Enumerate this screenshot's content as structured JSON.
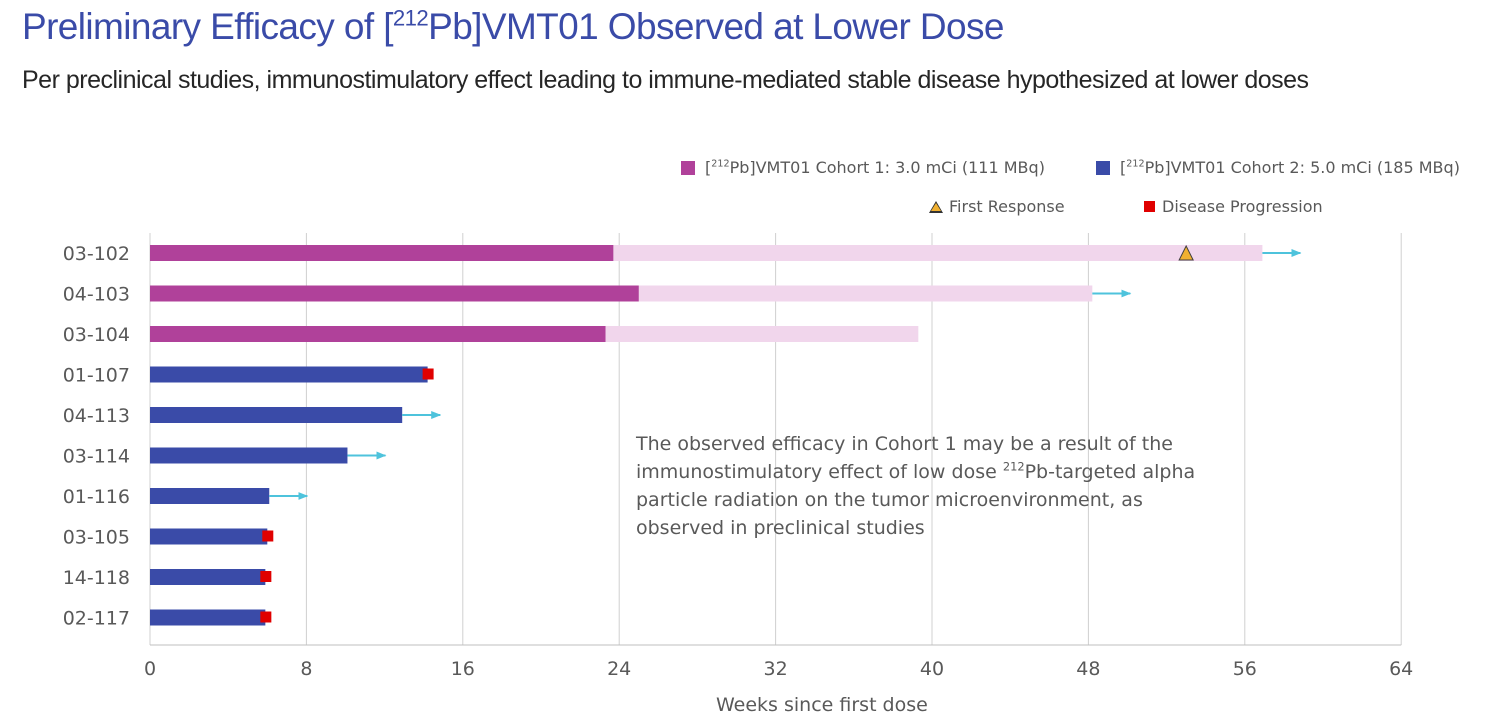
{
  "header": {
    "title_prefix": "Preliminary Efficacy of [",
    "title_sup": "212",
    "title_suffix": "Pb]VMT01 Observed at Lower Dose",
    "subtitle": "Per preclinical studies, immunostimulatory effect leading to immune-mediated stable disease hypothesized at lower doses"
  },
  "legend": {
    "cohort1": {
      "prefix": "[",
      "sup": "212",
      "suffix": "Pb]VMT01 Cohort 1: 3.0 mCi (111 MBq)"
    },
    "cohort2": {
      "prefix": "[",
      "sup": "212",
      "suffix": "Pb]VMT01 Cohort 2: 5.0 mCi (185 MBq)"
    },
    "first_response": "First Response",
    "disease_progression": "Disease Progression"
  },
  "note": {
    "text_before": "The observed efficacy in Cohort 1 may be a result of the immunostimulatory effect of low dose ",
    "sup": "212",
    "text_after": "Pb-targeted alpha particle radiation on the tumor microenvironment, as observed in preclinical studies"
  },
  "colors": {
    "cohort1": "#b0419a",
    "cohort1_light": "#f1d6ec",
    "cohort2": "#3a4ba8",
    "arrow": "#4ec3dc",
    "progression": "#e00000",
    "response": "#f0b030",
    "grid": "#d0d0d0"
  },
  "chart_data": {
    "type": "bar",
    "orientation": "horizontal",
    "xlabel": "Weeks since first dose",
    "xlim": [
      0,
      64
    ],
    "xticks": [
      0,
      8,
      16,
      24,
      32,
      40,
      48,
      56,
      64
    ],
    "grid": true,
    "categories": [
      "03-102",
      "04-103",
      "03-104",
      "01-107",
      "04-113",
      "03-114",
      "01-116",
      "03-105",
      "14-118",
      "02-117"
    ],
    "series": [
      {
        "name": "[212Pb]VMT01 Cohort 1: 3.0 mCi (111 MBq)",
        "patients": [
          {
            "id": "03-102",
            "dark": 23.7,
            "total": 56.9,
            "ongoing": true,
            "first_response": 53.0,
            "progression": null
          },
          {
            "id": "04-103",
            "dark": 25.0,
            "total": 48.2,
            "ongoing": true,
            "first_response": null,
            "progression": null
          },
          {
            "id": "03-104",
            "dark": 23.3,
            "total": 39.3,
            "ongoing": false,
            "first_response": null,
            "progression": null
          }
        ]
      },
      {
        "name": "[212Pb]VMT01 Cohort 2: 5.0 mCi (185 MBq)",
        "patients": [
          {
            "id": "01-107",
            "dark": 14.2,
            "total": 14.2,
            "ongoing": false,
            "first_response": null,
            "progression": 14.2
          },
          {
            "id": "04-113",
            "dark": 12.9,
            "total": 12.9,
            "ongoing": true,
            "first_response": null,
            "progression": null
          },
          {
            "id": "03-114",
            "dark": 10.1,
            "total": 10.1,
            "ongoing": true,
            "first_response": null,
            "progression": null
          },
          {
            "id": "01-116",
            "dark": 6.1,
            "total": 6.1,
            "ongoing": true,
            "first_response": null,
            "progression": null
          },
          {
            "id": "03-105",
            "dark": 6.0,
            "total": 6.0,
            "ongoing": false,
            "first_response": null,
            "progression": 6.0
          },
          {
            "id": "14-118",
            "dark": 5.9,
            "total": 5.9,
            "ongoing": false,
            "first_response": null,
            "progression": 5.9
          },
          {
            "id": "02-117",
            "dark": 5.9,
            "total": 5.9,
            "ongoing": false,
            "first_response": null,
            "progression": 5.9
          }
        ]
      }
    ]
  }
}
